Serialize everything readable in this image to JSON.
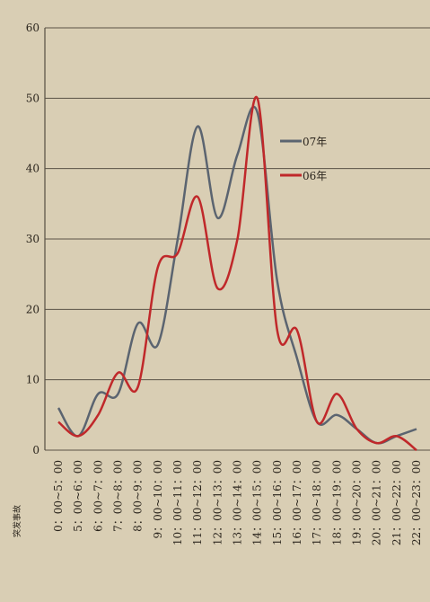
{
  "chart_data": {
    "type": "line",
    "categories": [
      "0：00~5：00",
      "5：00~6：00",
      "6：00~7：00",
      "7：00~8：00",
      "8：00~9：00",
      "9：00~10：00",
      "10：00~11：00",
      "11：00~12：00",
      "12：00~13：00",
      "13：00~14：00",
      "14：00~15：00",
      "15：00~16：00",
      "16：00~17：00",
      "17：00~18：00",
      "18：00~19：00",
      "19：00~20：00",
      "20：00~21：00",
      "21：00~22：00",
      "22：00~23：00"
    ],
    "series": [
      {
        "name": "07年",
        "color": "#5b6470",
        "values": [
          6,
          2,
          8,
          8,
          18,
          15,
          30,
          46,
          33,
          42,
          48,
          24,
          13,
          4,
          5,
          3,
          1,
          2,
          3
        ]
      },
      {
        "name": "06年",
        "color": "#c0282a",
        "values": [
          4,
          2,
          5,
          11,
          9,
          26,
          28,
          36,
          23,
          30,
          50,
          17,
          17,
          4,
          8,
          3,
          1,
          2,
          0
        ]
      }
    ],
    "x_label": "突发事故",
    "ylim": [
      0,
      60
    ],
    "yticks": [
      0,
      10,
      20,
      30,
      40,
      50,
      60
    ],
    "grid": true
  }
}
